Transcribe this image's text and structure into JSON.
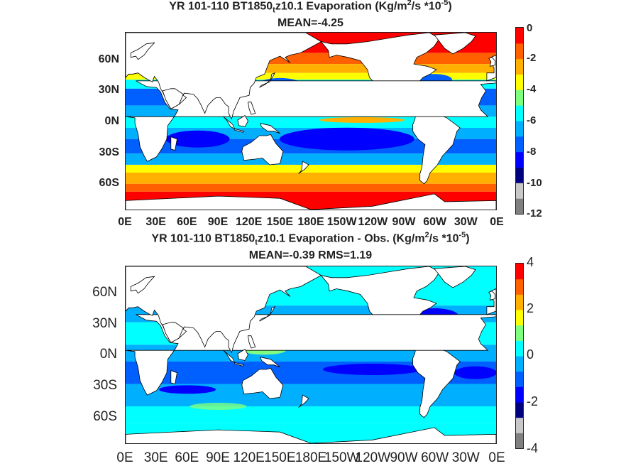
{
  "panel_top": {
    "title_pre": "YR 101-110 BT1850",
    "title_sub": "t",
    "title_mid": "z10.1  Evaporation (Kg/m",
    "title_sup1": "2",
    "title_post": "/s *10",
    "title_sup2": "-5",
    "title_end": ")",
    "stats": "MEAN=-4.25",
    "colorbar_ticks": [
      "0",
      "-2",
      "-4",
      "-6",
      "-8",
      "-10",
      "-12"
    ]
  },
  "panel_bottom": {
    "title_pre": "YR 101-110 BT1850",
    "title_sub": "t",
    "title_mid": "z10.1 Evaporation - Obs. (Kg/m",
    "title_sup1": "2",
    "title_post": "/s *10",
    "title_sup2": "-5",
    "title_end": ")",
    "stats": "MEAN=-0.39   RMS=1.19",
    "colorbar_ticks": [
      "4",
      "2",
      "0",
      "-2",
      "-4"
    ]
  },
  "lat_ticks": [
    "60N",
    "30N",
    "0N",
    "30S",
    "60S"
  ],
  "lon_ticks": [
    "0E",
    "30E",
    "60E",
    "90E",
    "120E",
    "150E",
    "180E",
    "150W",
    "120W",
    "90W",
    "60W",
    "30W",
    "0E"
  ],
  "colors": {
    "land": "#ffffff",
    "coast": "#000000",
    "colormap": [
      "#808080",
      "#c8c8c8",
      "#00007f",
      "#0000ff",
      "#0060ff",
      "#00b0ff",
      "#00ffff",
      "#7fff7f",
      "#ffff00",
      "#ffb000",
      "#ff6000",
      "#ff0000"
    ]
  }
}
